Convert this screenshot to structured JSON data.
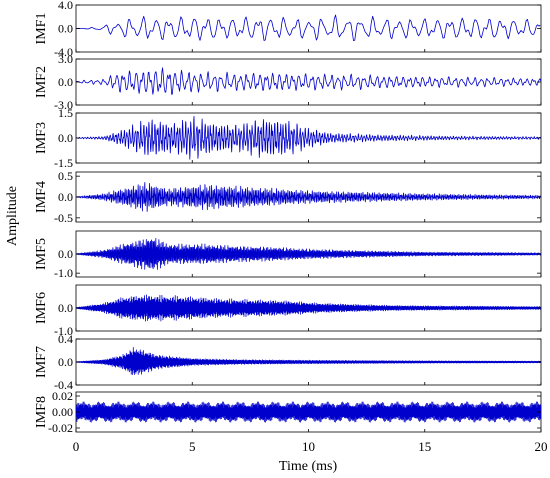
{
  "chart_data": {
    "type": "line",
    "ylabel": "Amplitude",
    "xlabel": "Time (ms)",
    "xlim": [
      0,
      20
    ],
    "x_ticks": [
      "0",
      "5",
      "10",
      "15",
      "20"
    ],
    "line_color": "#0000cc",
    "panels": [
      {
        "name": "IMF1",
        "ylim": [
          -4.0,
          4.0
        ],
        "y_ticks": [
          {
            "v": 4.0,
            "t": "4.0"
          },
          {
            "v": 0.0,
            "t": "0.0"
          },
          {
            "v": -4.0,
            "t": "-4.0"
          }
        ],
        "period_ms": 0.55,
        "envelope": [
          [
            0,
            0.0
          ],
          [
            0.8,
            0.2
          ],
          [
            1.5,
            1.0
          ],
          [
            2.3,
            1.9
          ],
          [
            3.0,
            2.2
          ],
          [
            4.0,
            2.0
          ],
          [
            5.2,
            2.3
          ],
          [
            6.5,
            1.9
          ],
          [
            8.0,
            2.3
          ],
          [
            9.5,
            1.8
          ],
          [
            11.0,
            2.2
          ],
          [
            12.0,
            2.1
          ],
          [
            13.5,
            1.9
          ],
          [
            15.0,
            1.8
          ],
          [
            16.5,
            2.0
          ],
          [
            18.0,
            2.0
          ],
          [
            19.5,
            1.6
          ],
          [
            20,
            1.8
          ]
        ]
      },
      {
        "name": "IMF2",
        "ylim": [
          -3.0,
          3.0
        ],
        "y_ticks": [
          {
            "v": 3.0,
            "t": "3.0"
          },
          {
            "v": 0.0,
            "t": "0.0"
          },
          {
            "v": -3.0,
            "t": "-3.0"
          }
        ],
        "period_ms": 0.28,
        "envelope": [
          [
            0,
            0.15
          ],
          [
            1.2,
            0.4
          ],
          [
            1.8,
            1.4
          ],
          [
            2.5,
            1.6
          ],
          [
            3.8,
            2.0
          ],
          [
            4.5,
            1.6
          ],
          [
            5.5,
            1.3
          ],
          [
            7.0,
            1.2
          ],
          [
            8.5,
            1.3
          ],
          [
            10.0,
            1.1
          ],
          [
            12.0,
            1.0
          ],
          [
            14.0,
            0.8
          ],
          [
            16.0,
            0.7
          ],
          [
            18.0,
            0.6
          ],
          [
            20,
            0.5
          ]
        ]
      },
      {
        "name": "IMF3",
        "ylim": [
          -1.5,
          1.5
        ],
        "y_ticks": [
          {
            "v": 1.5,
            "t": "1.5"
          },
          {
            "v": 0.0,
            "t": "0.0"
          },
          {
            "v": -1.5,
            "t": "-1.5"
          }
        ],
        "period_ms": 0.12,
        "envelope": [
          [
            0,
            0.03
          ],
          [
            1.2,
            0.1
          ],
          [
            2.0,
            0.5
          ],
          [
            3.2,
            1.2
          ],
          [
            4.2,
            0.9
          ],
          [
            5.0,
            1.3
          ],
          [
            6.0,
            0.9
          ],
          [
            7.0,
            0.8
          ],
          [
            8.0,
            1.2
          ],
          [
            9.0,
            1.1
          ],
          [
            10.0,
            0.6
          ],
          [
            11.0,
            0.3
          ],
          [
            13.0,
            0.2
          ],
          [
            16.0,
            0.12
          ],
          [
            20,
            0.08
          ]
        ]
      },
      {
        "name": "IMF4",
        "ylim": [
          -0.6,
          0.6
        ],
        "y_ticks": [
          {
            "v": 0.5,
            "t": "0.5"
          },
          {
            "v": 0.0,
            "t": "0.0"
          },
          {
            "v": -0.5,
            "t": "-0.5"
          }
        ],
        "period_ms": 0.07,
        "envelope": [
          [
            0,
            0.01
          ],
          [
            1.2,
            0.08
          ],
          [
            2.0,
            0.2
          ],
          [
            3.0,
            0.35
          ],
          [
            4.0,
            0.2
          ],
          [
            5.5,
            0.3
          ],
          [
            7.0,
            0.25
          ],
          [
            8.5,
            0.2
          ],
          [
            10.0,
            0.15
          ],
          [
            12.0,
            0.12
          ],
          [
            15.0,
            0.08
          ],
          [
            17.0,
            0.06
          ],
          [
            20,
            0.04
          ]
        ]
      },
      {
        "name": "IMF5",
        "ylim": [
          -1.2,
          1.2
        ],
        "y_ticks": [
          {
            "v": 0.0,
            "t": "0.0"
          },
          {
            "v": -1.0,
            "t": "-1.0"
          }
        ],
        "period_ms": 0.045,
        "envelope": [
          [
            0,
            0.02
          ],
          [
            1.2,
            0.2
          ],
          [
            2.0,
            0.5
          ],
          [
            3.3,
            0.9
          ],
          [
            4.0,
            0.5
          ],
          [
            5.5,
            0.5
          ],
          [
            7.0,
            0.4
          ],
          [
            8.5,
            0.35
          ],
          [
            10.0,
            0.25
          ],
          [
            12.0,
            0.18
          ],
          [
            15.0,
            0.1
          ],
          [
            18.0,
            0.08
          ],
          [
            20,
            0.06
          ]
        ]
      },
      {
        "name": "IMF6",
        "ylim": [
          -1.0,
          1.0
        ],
        "y_ticks": [
          {
            "v": 0.0,
            "t": "0.0"
          },
          {
            "v": -1.0,
            "t": "-1.0"
          }
        ],
        "period_ms": 0.03,
        "envelope": [
          [
            0,
            0.02
          ],
          [
            1.2,
            0.2
          ],
          [
            2.0,
            0.45
          ],
          [
            3.0,
            0.55
          ],
          [
            4.5,
            0.5
          ],
          [
            6.0,
            0.4
          ],
          [
            7.5,
            0.35
          ],
          [
            9.0,
            0.3
          ],
          [
            10.5,
            0.2
          ],
          [
            12.0,
            0.15
          ],
          [
            14.0,
            0.1
          ],
          [
            17.0,
            0.08
          ],
          [
            20,
            0.06
          ]
        ]
      },
      {
        "name": "IMF7",
        "ylim": [
          -0.4,
          0.4
        ],
        "y_ticks": [
          {
            "v": 0.4,
            "t": "0.4"
          },
          {
            "v": 0.0,
            "t": "0.0"
          },
          {
            "v": -0.4,
            "t": "-0.4"
          }
        ],
        "period_ms": 0.02,
        "envelope": [
          [
            0,
            0.005
          ],
          [
            1.2,
            0.04
          ],
          [
            2.0,
            0.12
          ],
          [
            2.5,
            0.25
          ],
          [
            3.5,
            0.12
          ],
          [
            5.0,
            0.06
          ],
          [
            7.0,
            0.04
          ],
          [
            10.0,
            0.03
          ],
          [
            15.0,
            0.02
          ],
          [
            20,
            0.015
          ]
        ]
      },
      {
        "name": "IMF8",
        "ylim": [
          -0.025,
          0.025
        ],
        "y_ticks": [
          {
            "v": 0.02,
            "t": "0.02"
          },
          {
            "v": 0.0,
            "t": "0.00"
          },
          {
            "v": -0.02,
            "t": "-0.02"
          }
        ],
        "period_ms": 0.015,
        "envelope": [
          [
            0,
            0.012
          ],
          [
            20,
            0.012
          ]
        ]
      }
    ]
  }
}
